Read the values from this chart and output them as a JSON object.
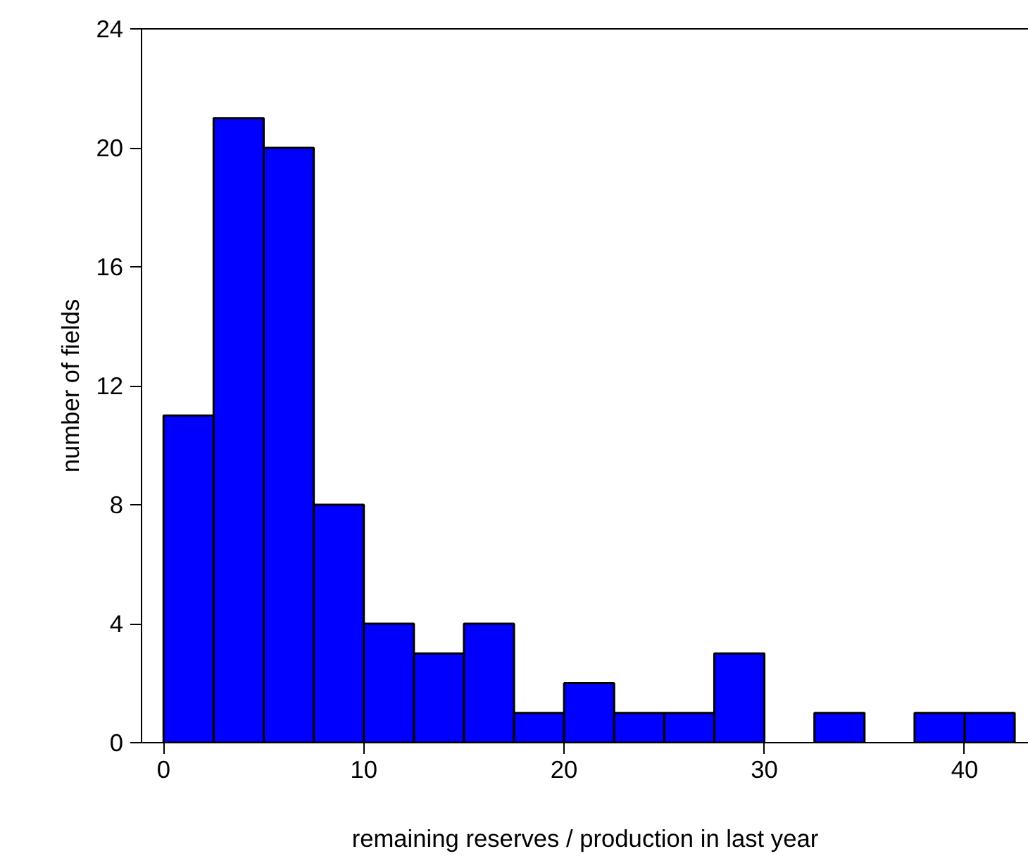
{
  "chart_data": {
    "type": "histogram",
    "xlabel": "remaining reserves / production in last year",
    "ylabel": "number of fields",
    "bins": [
      0,
      2.5,
      5,
      7.5,
      10,
      12.5,
      15,
      17.5,
      20,
      22.5,
      25,
      27.5,
      30,
      32.5,
      35,
      37.5,
      40,
      42.5
    ],
    "values": [
      11,
      21,
      20,
      8,
      4,
      3,
      4,
      1,
      2,
      1,
      1,
      3,
      0,
      1,
      0,
      1,
      1
    ],
    "color": "#0000ff",
    "xlim": [
      -1.1,
      43.2
    ],
    "xticks": [
      0,
      10,
      20,
      30,
      40
    ],
    "ylim": [
      0,
      24
    ],
    "yticks": [
      0,
      4,
      8,
      12,
      16,
      20,
      24
    ],
    "grid": false
  }
}
